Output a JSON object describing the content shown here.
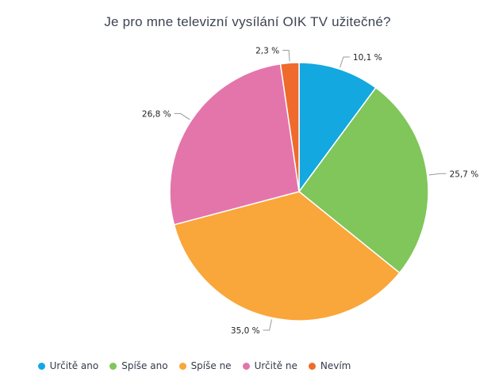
{
  "chart_data": {
    "type": "pie",
    "title": "Je pro mne televizní vysílání OIK TV užitečné?",
    "slices": [
      {
        "label": "Určitě ano",
        "value": 10.1,
        "display": "10,1 %",
        "color": "#14a8e0"
      },
      {
        "label": "Spíše ano",
        "value": 25.7,
        "display": "25,7 %",
        "color": "#80c65a"
      },
      {
        "label": "Spíše ne",
        "value": 35.0,
        "display": "35,0 %",
        "color": "#f9a63a"
      },
      {
        "label": "Určitě ne",
        "value": 26.8,
        "display": "26,8 %",
        "color": "#e475ab"
      },
      {
        "label": "Nevím",
        "value": 2.3,
        "display": "2,3 %",
        "color": "#ef6b2d"
      }
    ],
    "start": "12 o'clock",
    "direction": "clockwise",
    "legend_position": "bottom"
  }
}
